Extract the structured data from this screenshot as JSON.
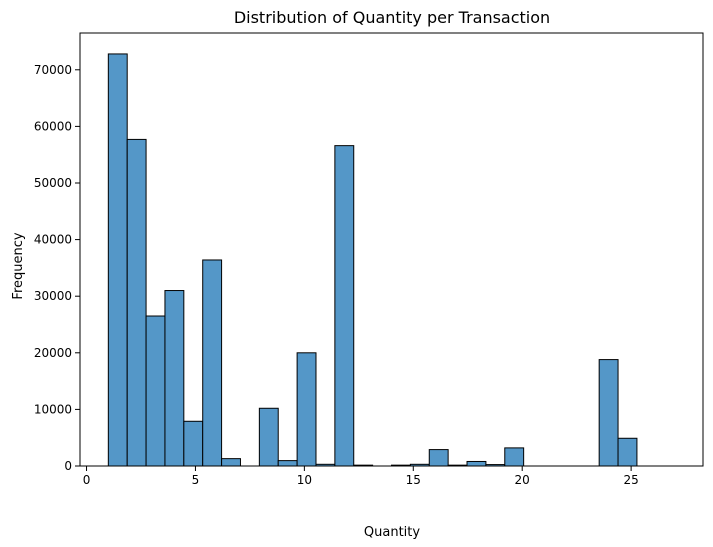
{
  "chart_data": {
    "type": "bar",
    "title": "Distribution of Quantity per Transaction",
    "xlabel": "Quantity",
    "ylabel": "Frequency",
    "xlim": [
      -0.3,
      28.3
    ],
    "ylim": [
      0,
      76500
    ],
    "xticks": [
      0,
      5,
      10,
      15,
      20,
      25
    ],
    "yticks": [
      0,
      10000,
      20000,
      30000,
      40000,
      50000,
      60000,
      70000
    ],
    "xtick_labels": [
      "0",
      "5",
      "10",
      "15",
      "20",
      "25"
    ],
    "ytick_labels": [
      "0",
      "10000",
      "20000",
      "30000",
      "40000",
      "50000",
      "60000",
      "70000"
    ],
    "bar_color": "#5497c8",
    "bar_edge_color": "#000000",
    "grid": false,
    "bins": [
      {
        "x0": 1.0,
        "x1": 1.8667,
        "value": 72800
      },
      {
        "x0": 1.8667,
        "x1": 2.7333,
        "value": 57700
      },
      {
        "x0": 2.7333,
        "x1": 3.6,
        "value": 26500
      },
      {
        "x0": 3.6,
        "x1": 4.4667,
        "value": 31000
      },
      {
        "x0": 4.4667,
        "x1": 5.3333,
        "value": 7900
      },
      {
        "x0": 5.3333,
        "x1": 6.2,
        "value": 36400
      },
      {
        "x0": 6.2,
        "x1": 7.0667,
        "value": 1300
      },
      {
        "x0": 7.0667,
        "x1": 7.9333,
        "value": 0
      },
      {
        "x0": 7.9333,
        "x1": 8.8,
        "value": 10200
      },
      {
        "x0": 8.8,
        "x1": 9.6667,
        "value": 950
      },
      {
        "x0": 9.6667,
        "x1": 10.5333,
        "value": 20000
      },
      {
        "x0": 10.5333,
        "x1": 11.4,
        "value": 300
      },
      {
        "x0": 11.4,
        "x1": 12.2667,
        "value": 56600
      },
      {
        "x0": 12.2667,
        "x1": 13.1333,
        "value": 150
      },
      {
        "x0": 13.1333,
        "x1": 14.0,
        "value": 0
      },
      {
        "x0": 14.0,
        "x1": 14.8667,
        "value": 150
      },
      {
        "x0": 14.8667,
        "x1": 15.7333,
        "value": 300
      },
      {
        "x0": 15.7333,
        "x1": 16.6,
        "value": 2900
      },
      {
        "x0": 16.6,
        "x1": 17.4667,
        "value": 150
      },
      {
        "x0": 17.4667,
        "x1": 18.3333,
        "value": 800
      },
      {
        "x0": 18.3333,
        "x1": 19.2,
        "value": 250
      },
      {
        "x0": 19.2,
        "x1": 20.0667,
        "value": 3200
      },
      {
        "x0": 20.0667,
        "x1": 20.9333,
        "value": 0
      },
      {
        "x0": 20.9333,
        "x1": 21.8,
        "value": 0
      },
      {
        "x0": 21.8,
        "x1": 22.6667,
        "value": 0
      },
      {
        "x0": 22.6667,
        "x1": 23.5333,
        "value": 0
      },
      {
        "x0": 23.5333,
        "x1": 24.4,
        "value": 18800
      },
      {
        "x0": 24.4,
        "x1": 25.2667,
        "value": 4900
      },
      {
        "x0": 25.2667,
        "x1": 26.1333,
        "value": 0
      },
      {
        "x0": 26.1333,
        "x1": 27.0,
        "value": 0
      }
    ]
  }
}
